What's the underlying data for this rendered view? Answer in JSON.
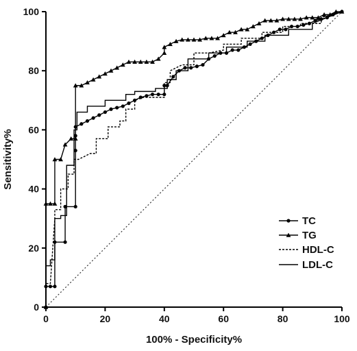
{
  "chart_data": {
    "type": "line",
    "xlabel": "100% - Specificity%",
    "ylabel": "Sensitivity%",
    "xlim": [
      0,
      100
    ],
    "ylim": [
      0,
      100
    ],
    "xticks": [
      0,
      20,
      40,
      60,
      80,
      100
    ],
    "yticks": [
      0,
      20,
      40,
      60,
      80,
      100
    ],
    "legend_position": "bottom-right",
    "reference_line": {
      "x": [
        0,
        100
      ],
      "y": [
        0,
        100
      ],
      "style": "dotted"
    },
    "series": [
      {
        "name": "TC",
        "style": "solid",
        "marker": "circle",
        "x": [
          0,
          0,
          1.5,
          3,
          3,
          6.5,
          6.5,
          10,
          10,
          10,
          10,
          12,
          14,
          16,
          18,
          20,
          22,
          24,
          26,
          28,
          30,
          32,
          34,
          36,
          38,
          40,
          40,
          41,
          43,
          45,
          47,
          49,
          51,
          53,
          55,
          57,
          59,
          61,
          63,
          65,
          67,
          69,
          71,
          73,
          75,
          77,
          79,
          81,
          83,
          85,
          87,
          89,
          91,
          93,
          95,
          97,
          100
        ],
        "y": [
          0,
          7,
          7,
          7,
          22,
          22,
          34,
          34,
          53,
          58,
          61,
          62,
          63,
          64,
          65,
          66,
          67,
          67.5,
          68,
          69,
          70,
          71,
          71.5,
          72,
          72,
          72,
          75,
          75,
          78,
          80,
          81,
          81,
          81.5,
          82,
          84,
          85,
          86,
          86,
          87,
          87,
          88,
          89,
          90,
          91,
          92,
          93,
          94,
          94,
          95,
          95,
          95.5,
          96,
          97,
          97.5,
          98,
          99,
          100
        ]
      },
      {
        "name": "TG",
        "style": "solid",
        "marker": "triangle",
        "x": [
          0,
          0,
          1.5,
          3,
          3,
          5,
          6.5,
          8.5,
          10,
          10,
          12,
          14,
          16,
          18,
          20,
          22,
          24,
          26,
          28,
          30,
          32,
          34,
          36,
          38,
          40,
          40,
          42,
          44,
          46,
          48,
          50,
          52,
          54,
          56,
          58,
          60,
          62,
          64,
          66,
          68,
          70,
          72,
          74,
          76,
          78,
          80,
          82,
          84,
          86,
          88,
          90,
          92,
          94,
          96,
          98,
          100
        ],
        "y": [
          0,
          35,
          35,
          35,
          50,
          50,
          55,
          57,
          57,
          75,
          75,
          76,
          77,
          78,
          79,
          80,
          81,
          82,
          83,
          83,
          83,
          83,
          83,
          84,
          86,
          88,
          89,
          90,
          90.5,
          90.5,
          90.5,
          90.5,
          91,
          91,
          91,
          92,
          93,
          93,
          94,
          94,
          95,
          96,
          97,
          97,
          97,
          97.5,
          97.5,
          97.5,
          97.5,
          98,
          98,
          98,
          99,
          99,
          100,
          100
        ]
      },
      {
        "name": "HDL-C",
        "style": "dashed",
        "marker": "none",
        "x": [
          0,
          0,
          1.5,
          3,
          3,
          5,
          5,
          7.5,
          7.5,
          9.5,
          9.5,
          11,
          13,
          15,
          17,
          17,
          21,
          21,
          25,
          25,
          27,
          27,
          30,
          30,
          33,
          37,
          40,
          40,
          42,
          42,
          46,
          50,
          50,
          55,
          60,
          60,
          66,
          66,
          73,
          73,
          80,
          80,
          86,
          86,
          93,
          93,
          100
        ],
        "y": [
          0,
          8,
          8,
          30,
          33,
          33,
          40,
          40,
          45,
          45,
          50,
          50,
          51,
          52,
          52,
          57,
          57,
          61,
          61,
          63,
          63,
          67,
          67,
          70,
          71,
          71,
          71,
          76,
          76,
          80,
          82,
          82,
          86,
          86,
          87,
          89,
          89,
          91,
          91,
          93,
          93,
          95,
          95,
          96,
          96,
          98,
          100
        ]
      },
      {
        "name": "LDL-C",
        "style": "solid",
        "marker": "none",
        "x": [
          0,
          0,
          1.5,
          1.5,
          3,
          3,
          5,
          5,
          7,
          7,
          9.5,
          9.5,
          10.5,
          10.5,
          14,
          14,
          20,
          20,
          27,
          27,
          30,
          30,
          37,
          37,
          41,
          41,
          44,
          44,
          48,
          48,
          55,
          55,
          61,
          61,
          68,
          68,
          74,
          74,
          82,
          82,
          90,
          90,
          100
        ],
        "y": [
          0,
          14,
          14,
          16,
          16,
          30,
          30,
          31,
          31,
          48,
          48,
          60,
          60,
          66,
          66,
          68,
          68,
          70,
          70,
          72,
          72,
          73,
          73,
          74,
          74,
          77,
          77,
          80,
          80,
          84,
          84,
          86,
          86,
          88,
          88,
          90,
          90,
          92,
          92,
          94,
          94,
          96,
          100
        ]
      }
    ]
  }
}
